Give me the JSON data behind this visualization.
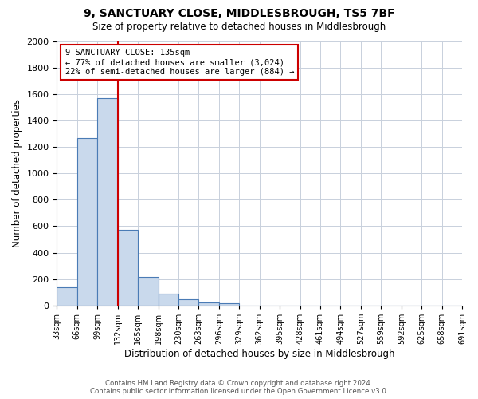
{
  "title": "9, SANCTUARY CLOSE, MIDDLESBROUGH, TS5 7BF",
  "subtitle": "Size of property relative to detached houses in Middlesbrough",
  "xlabel": "Distribution of detached houses by size in Middlesbrough",
  "ylabel": "Number of detached properties",
  "bar_values": [
    140,
    1265,
    1570,
    575,
    215,
    90,
    45,
    25,
    15,
    0,
    0,
    0,
    0,
    0,
    0,
    0,
    0,
    0,
    0,
    0
  ],
  "bin_labels": [
    "33sqm",
    "66sqm",
    "99sqm",
    "132sqm",
    "165sqm",
    "198sqm",
    "230sqm",
    "263sqm",
    "296sqm",
    "329sqm",
    "362sqm",
    "395sqm",
    "428sqm",
    "461sqm",
    "494sqm",
    "527sqm",
    "559sqm",
    "592sqm",
    "625sqm",
    "658sqm",
    "691sqm"
  ],
  "bar_color": "#c9d9ec",
  "bar_edge_color": "#4a7bb5",
  "vline_x": 3.0,
  "vline_color": "#cc0000",
  "annotation_title": "9 SANCTUARY CLOSE: 135sqm",
  "annotation_line1": "← 77% of detached houses are smaller (3,024)",
  "annotation_line2": "22% of semi-detached houses are larger (884) →",
  "annotation_box_color": "#cc0000",
  "ylim": [
    0,
    2000
  ],
  "yticks": [
    0,
    200,
    400,
    600,
    800,
    1000,
    1200,
    1400,
    1600,
    1800,
    2000
  ],
  "footer_line1": "Contains HM Land Registry data © Crown copyright and database right 2024.",
  "footer_line2": "Contains public sector information licensed under the Open Government Licence v3.0.",
  "bg_color": "#ffffff",
  "grid_color": "#c8d0dc"
}
